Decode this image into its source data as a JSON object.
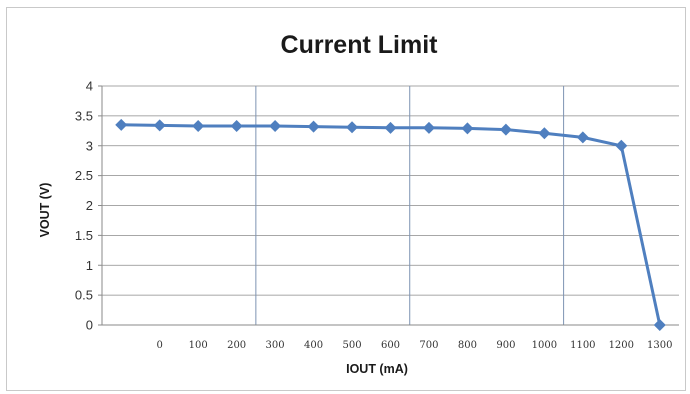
{
  "chart_data": {
    "type": "line",
    "title": "Current Limit",
    "xlabel": "IOUT (mA)",
    "ylabel": "VOUT (V)",
    "x_tick_labels": [
      "0",
      "100",
      "200",
      "300",
      "400",
      "500",
      "600",
      "700",
      "800",
      "900",
      "1000",
      "1100",
      "1200",
      "1300"
    ],
    "y_tick_labels": [
      "0",
      "0.5",
      "1",
      "1.5",
      "2",
      "2.5",
      "3",
      "3.5",
      "4"
    ],
    "ylim": [
      0,
      4
    ],
    "grid": {
      "horizontal": true,
      "vertical_every": 4
    },
    "legend": "none",
    "series": [
      {
        "color": "#4f7fbf",
        "marker": "diamond",
        "values": [
          3.35,
          3.34,
          3.33,
          3.33,
          3.33,
          3.32,
          3.31,
          3.3,
          3.3,
          3.29,
          3.27,
          3.21,
          3.14,
          3.0,
          0.0
        ]
      }
    ]
  }
}
